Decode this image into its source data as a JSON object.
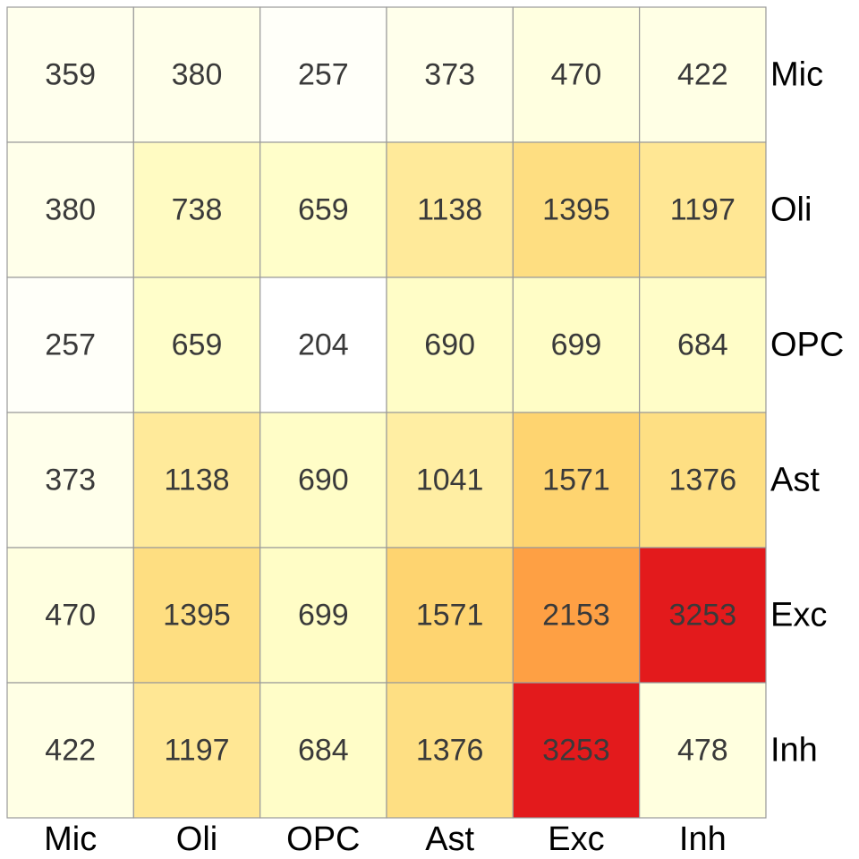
{
  "chart_data": {
    "type": "heatmap",
    "title": "",
    "xlabel": "",
    "ylabel": "",
    "x_categories": [
      "Mic",
      "Oli",
      "OPC",
      "Ast",
      "Exc",
      "Inh"
    ],
    "y_categories": [
      "Mic",
      "Oli",
      "OPC",
      "Ast",
      "Exc",
      "Inh"
    ],
    "values": [
      [
        359,
        380,
        257,
        373,
        470,
        422
      ],
      [
        380,
        738,
        659,
        1138,
        1395,
        1197
      ],
      [
        257,
        659,
        204,
        690,
        699,
        684
      ],
      [
        373,
        1138,
        690,
        1041,
        1571,
        1376
      ],
      [
        470,
        1395,
        699,
        1571,
        2153,
        3253
      ],
      [
        422,
        1197,
        684,
        1376,
        3253,
        478
      ]
    ],
    "color_scale": {
      "name": "YlOrRd",
      "stops": [
        "#FFFFFF",
        "#FFFFCC",
        "#FFEDA0",
        "#FED976",
        "#FEB24C",
        "#FD8D3C",
        "#FC4E2A",
        "#E31A1C"
      ]
    },
    "grid_color": "#9a9a9a",
    "x_label_position": "bottom",
    "y_label_position": "right"
  }
}
